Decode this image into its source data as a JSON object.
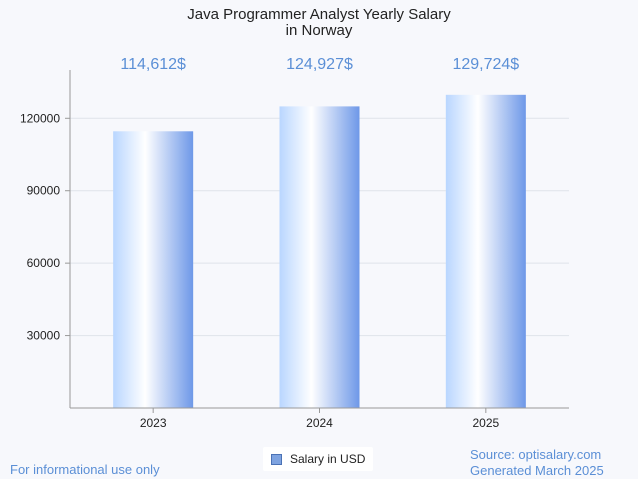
{
  "chart_data": {
    "type": "bar",
    "title_lines": [
      "Java Programmer Analyst Yearly Salary",
      "in Norway"
    ],
    "categories": [
      "2023",
      "2024",
      "2025"
    ],
    "values": [
      114612,
      124927,
      129724
    ],
    "data_labels": [
      "114,612$",
      "124,927$",
      "129,724$"
    ],
    "series": [
      {
        "name": "Salary in USD",
        "values": [
          114612,
          124927,
          129724
        ]
      }
    ],
    "y_ticks": [
      "30000",
      "60000",
      "90000",
      "120000"
    ],
    "ylim": [
      0,
      140000
    ],
    "grid": true,
    "legend_position": "bottom-center",
    "colors": {
      "bar_edge": "#6e98e8",
      "bar_light": "#ffffff",
      "label": "#5b8fd6"
    }
  },
  "footer": {
    "note": "For informational use only",
    "source": "Source: optisalary.com",
    "generated": "Generated March 2025"
  }
}
